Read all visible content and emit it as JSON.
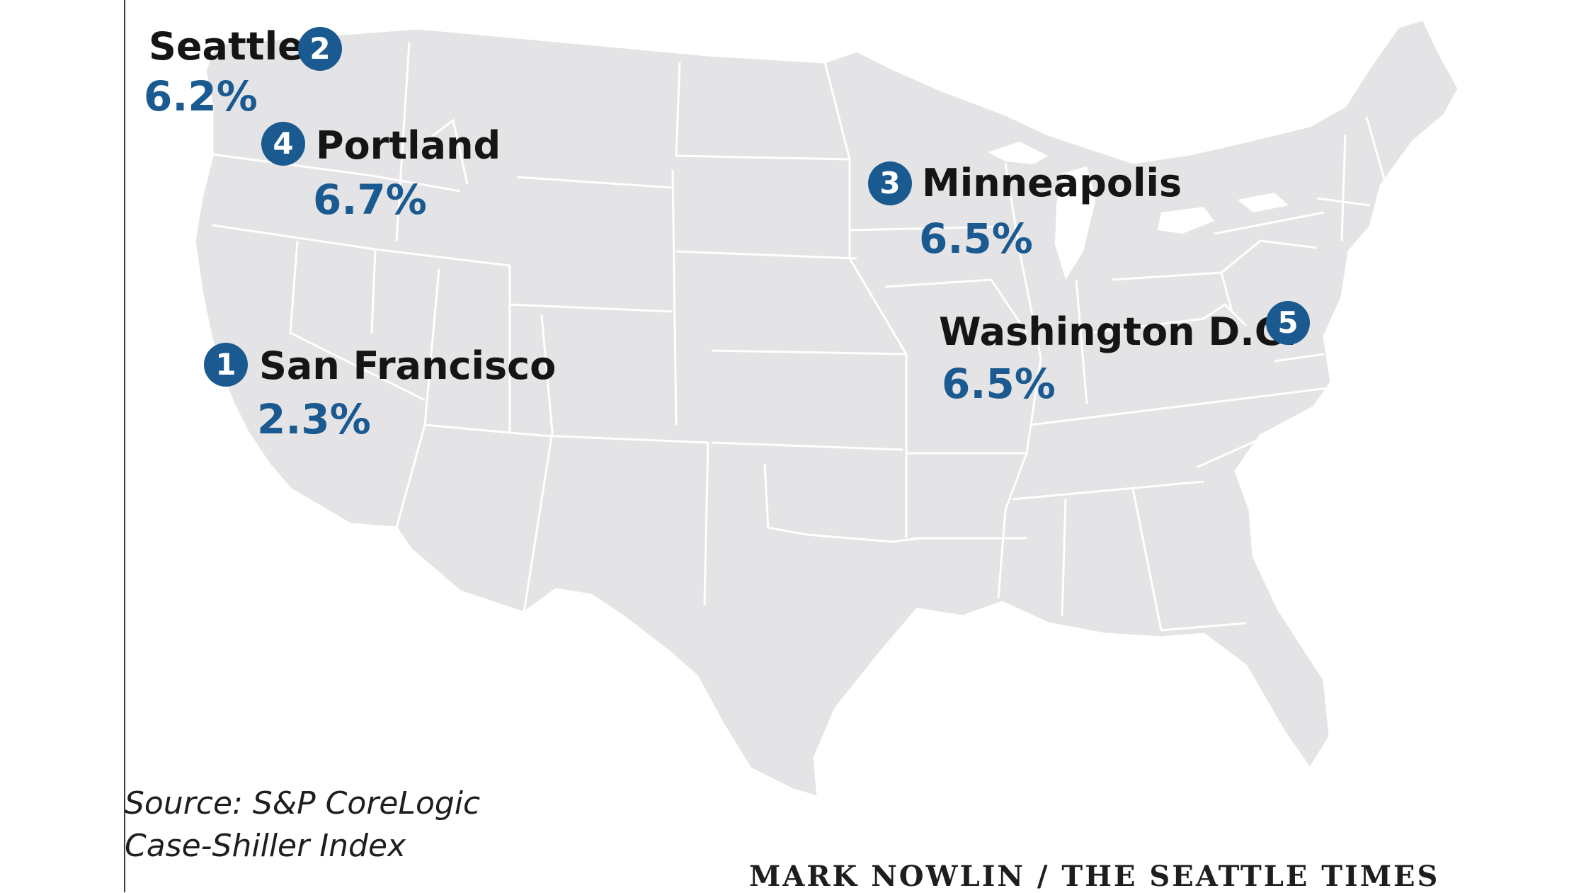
{
  "colors": {
    "land": "#e4e4e6",
    "borders": "#ffffff",
    "accent_blue": "#1a5a90",
    "city_text": "#151515"
  },
  "cities": [
    {
      "rank": "2",
      "name": "Seattle",
      "pct": "6.2%"
    },
    {
      "rank": "4",
      "name": "Portland",
      "pct": "6.7%"
    },
    {
      "rank": "3",
      "name": "Minneapolis",
      "pct": "6.5%"
    },
    {
      "rank": "5",
      "name": "Washington D.C.",
      "pct": "6.5%"
    },
    {
      "rank": "1",
      "name": "San Francisco",
      "pct": "2.3%"
    }
  ],
  "source": {
    "line1": "Source: S&P CoreLogic",
    "line2": "Case-Shiller Index"
  },
  "credit": "MARK NOWLIN / THE SEATTLE TIMES"
}
